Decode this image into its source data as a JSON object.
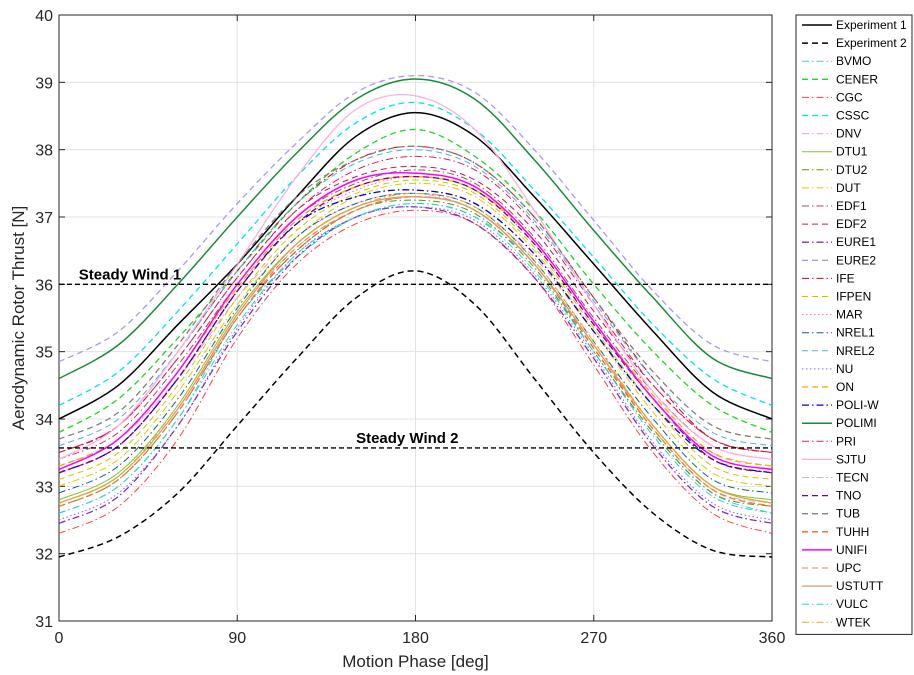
{
  "chart_data": {
    "type": "line",
    "xlabel": "Motion Phase [deg]",
    "ylabel": "Aerodynamic Rotor Thrust [N]",
    "xlim": [
      0,
      360
    ],
    "ylim": [
      31,
      40
    ],
    "xticks": [
      0,
      90,
      180,
      270,
      360
    ],
    "yticks": [
      31,
      32,
      33,
      34,
      35,
      36,
      37,
      38,
      39,
      40
    ],
    "grid": true,
    "legend_position": "outside-right",
    "x": [
      0,
      30,
      60,
      90,
      120,
      150,
      180,
      210,
      240,
      270,
      300,
      330,
      360
    ],
    "annotations": [
      {
        "text": "Steady Wind 1",
        "x": 10,
        "y": 36.0,
        "value": 36.0
      },
      {
        "text": "Steady Wind 2",
        "x": 150,
        "y": 33.57,
        "value": 33.57
      }
    ],
    "series": [
      {
        "name": "Experiment 1",
        "color": "#000000",
        "dash": "solid",
        "width": 1.5,
        "values": [
          34.0,
          34.5,
          35.4,
          36.3,
          37.3,
          38.2,
          38.55,
          38.2,
          37.3,
          36.3,
          35.3,
          34.4,
          34.0
        ]
      },
      {
        "name": "Experiment 2",
        "color": "#000000",
        "dash": "dashed",
        "width": 1.5,
        "values": [
          31.95,
          32.25,
          32.9,
          33.9,
          34.9,
          35.8,
          36.2,
          35.7,
          34.6,
          33.5,
          32.6,
          32.05,
          31.95
        ]
      },
      {
        "name": "BVMO",
        "color": "#4bc8d8",
        "dash": "dashdot",
        "width": 1,
        "values": [
          32.6,
          33.0,
          34.0,
          35.5,
          36.4,
          37.0,
          37.2,
          37.0,
          36.3,
          35.0,
          33.8,
          32.9,
          32.6
        ]
      },
      {
        "name": "CENER",
        "color": "#22d422",
        "dash": "dashed",
        "width": 1.3,
        "values": [
          33.8,
          34.3,
          35.2,
          36.2,
          37.2,
          37.95,
          38.3,
          37.9,
          37.1,
          36.0,
          35.0,
          34.2,
          33.8
        ]
      },
      {
        "name": "CGC",
        "color": "#ff4040",
        "dash": "dashdot",
        "width": 1,
        "values": [
          32.3,
          32.7,
          33.7,
          35.2,
          36.3,
          36.9,
          37.1,
          36.9,
          36.1,
          34.8,
          33.5,
          32.6,
          32.3
        ]
      },
      {
        "name": "CSSC",
        "color": "#00e5ee",
        "dash": "dashed",
        "width": 1.3,
        "values": [
          34.2,
          34.7,
          35.6,
          36.6,
          37.6,
          38.4,
          38.7,
          38.3,
          37.4,
          36.4,
          35.4,
          34.6,
          34.2
        ]
      },
      {
        "name": "DNV",
        "color": "#e8a0e8",
        "dash": "dashdot",
        "width": 1,
        "values": [
          33.3,
          33.7,
          34.6,
          35.8,
          36.7,
          37.2,
          37.35,
          37.1,
          36.4,
          35.3,
          34.2,
          33.5,
          33.3
        ]
      },
      {
        "name": "DTU1",
        "color": "#80c040",
        "dash": "solid",
        "width": 1,
        "values": [
          32.8,
          33.2,
          34.2,
          35.6,
          36.6,
          37.15,
          37.3,
          37.1,
          36.3,
          35.1,
          33.9,
          33.0,
          32.8
        ]
      },
      {
        "name": "DTU2",
        "color": "#609010",
        "dash": "dashdot",
        "width": 1,
        "values": [
          32.7,
          33.1,
          34.1,
          35.5,
          36.5,
          37.1,
          37.25,
          37.05,
          36.25,
          35.0,
          33.8,
          32.9,
          32.7
        ]
      },
      {
        "name": "DUT",
        "color": "#e0c800",
        "dash": "dashdot",
        "width": 1,
        "values": [
          33.0,
          33.4,
          34.4,
          35.7,
          36.7,
          37.3,
          37.5,
          37.3,
          36.5,
          35.3,
          34.1,
          33.2,
          33.0
        ]
      },
      {
        "name": "EDF1",
        "color": "#a05050",
        "dash": "dashdot",
        "width": 1,
        "values": [
          33.4,
          33.8,
          34.8,
          36.0,
          37.0,
          37.5,
          37.7,
          37.5,
          36.7,
          35.5,
          34.4,
          33.6,
          33.4
        ]
      },
      {
        "name": "EDF2",
        "color": "#c81850",
        "dash": "dashed",
        "width": 1,
        "values": [
          33.5,
          33.9,
          34.9,
          36.1,
          37.1,
          37.6,
          37.75,
          37.55,
          36.8,
          35.6,
          34.5,
          33.7,
          33.5
        ]
      },
      {
        "name": "EURE1",
        "color": "#7b2fc8",
        "dash": "dashdot",
        "width": 1.3,
        "values": [
          32.45,
          32.85,
          33.9,
          35.3,
          36.4,
          37.0,
          37.15,
          36.9,
          36.1,
          34.9,
          33.6,
          32.7,
          32.45
        ]
      },
      {
        "name": "EURE2",
        "color": "#a89af0",
        "dash": "dashed",
        "width": 1.3,
        "values": [
          34.85,
          35.3,
          36.2,
          37.2,
          38.1,
          38.85,
          39.1,
          38.85,
          38.0,
          36.95,
          35.9,
          35.1,
          34.85
        ]
      },
      {
        "name": "IFE",
        "color": "#e00000",
        "dash": "dashdot",
        "width": 1,
        "values": [
          33.5,
          33.9,
          35.0,
          36.2,
          37.2,
          37.85,
          38.05,
          37.8,
          37.0,
          35.8,
          34.6,
          33.7,
          33.5
        ]
      },
      {
        "name": "IFPEN",
        "color": "#c8c800",
        "dash": "dashed",
        "width": 1,
        "values": [
          33.1,
          33.5,
          34.5,
          35.8,
          36.8,
          37.35,
          37.55,
          37.35,
          36.55,
          35.35,
          34.2,
          33.3,
          33.1
        ]
      },
      {
        "name": "MAR",
        "color": "#ff69b4",
        "dash": "dotted",
        "width": 1,
        "values": [
          33.2,
          33.6,
          34.6,
          35.9,
          36.9,
          37.4,
          37.6,
          37.4,
          36.6,
          35.4,
          34.3,
          33.4,
          33.2
        ]
      },
      {
        "name": "NREL1",
        "color": "#10608a",
        "dash": "dashdot",
        "width": 1,
        "values": [
          32.9,
          33.3,
          34.3,
          35.65,
          36.7,
          37.2,
          37.35,
          37.15,
          36.35,
          35.15,
          34.0,
          33.1,
          32.9
        ]
      },
      {
        "name": "NREL2",
        "color": "#50b0e0",
        "dash": "dashed",
        "width": 1,
        "values": [
          33.6,
          34.0,
          35.0,
          36.2,
          37.2,
          37.8,
          38.0,
          37.75,
          36.95,
          35.75,
          34.6,
          33.8,
          33.6
        ]
      },
      {
        "name": "NU",
        "color": "#9060f0",
        "dash": "dotted",
        "width": 1,
        "values": [
          32.5,
          32.9,
          33.9,
          35.35,
          36.45,
          37.0,
          37.15,
          36.95,
          36.15,
          34.95,
          33.65,
          32.75,
          32.5
        ]
      },
      {
        "name": "ON",
        "color": "#ffa500",
        "dash": "dashed",
        "width": 1.3,
        "values": [
          33.3,
          33.7,
          34.7,
          35.95,
          36.95,
          37.45,
          37.6,
          37.4,
          36.65,
          35.45,
          34.35,
          33.5,
          33.3
        ]
      },
      {
        "name": "POLI-W",
        "color": "#0000d0",
        "dash": "dashdot",
        "width": 1.3,
        "values": [
          33.2,
          33.6,
          34.6,
          35.9,
          36.9,
          37.3,
          37.4,
          37.2,
          36.45,
          35.3,
          34.2,
          33.4,
          33.2
        ]
      },
      {
        "name": "POLIMI",
        "color": "#1a8a3a",
        "dash": "solid",
        "width": 1.5,
        "values": [
          34.6,
          35.1,
          36.0,
          37.0,
          37.95,
          38.75,
          39.05,
          38.75,
          37.85,
          36.8,
          35.8,
          34.9,
          34.6
        ]
      },
      {
        "name": "PRI",
        "color": "#e02060",
        "dash": "dashdot",
        "width": 1,
        "values": [
          33.5,
          33.9,
          34.9,
          36.1,
          37.1,
          37.7,
          37.9,
          37.7,
          36.9,
          35.7,
          34.5,
          33.7,
          33.5
        ]
      },
      {
        "name": "SJTU",
        "color": "#ffb0e0",
        "dash": "solid",
        "width": 1.3,
        "values": [
          33.4,
          33.9,
          35.0,
          36.3,
          37.6,
          38.6,
          38.8,
          38.3,
          37.1,
          35.7,
          34.4,
          33.6,
          33.4
        ]
      },
      {
        "name": "TECN",
        "color": "#c0c0c0",
        "dash": "dashdot",
        "width": 1,
        "values": [
          32.75,
          33.15,
          34.15,
          35.55,
          36.55,
          37.1,
          37.3,
          37.1,
          36.3,
          35.1,
          33.85,
          32.95,
          32.75
        ]
      },
      {
        "name": "TNO",
        "color": "#800080",
        "dash": "dashed",
        "width": 1.3,
        "values": [
          33.2,
          33.6,
          34.6,
          35.9,
          36.9,
          37.45,
          37.6,
          37.4,
          36.6,
          35.4,
          34.3,
          33.4,
          33.2
        ]
      },
      {
        "name": "TUB",
        "color": "#808080",
        "dash": "dashed",
        "width": 1.3,
        "values": [
          33.7,
          34.1,
          35.1,
          36.3,
          37.3,
          37.85,
          38.05,
          37.8,
          37.0,
          35.8,
          34.7,
          33.9,
          33.7
        ]
      },
      {
        "name": "TUHH",
        "color": "#ff6020",
        "dash": "dashed",
        "width": 1.3,
        "values": [
          32.7,
          33.1,
          34.1,
          35.5,
          36.5,
          37.1,
          37.3,
          37.1,
          36.3,
          35.05,
          33.85,
          32.95,
          32.7
        ]
      },
      {
        "name": "UNIFI",
        "color": "#ff00ff",
        "dash": "solid",
        "width": 1.5,
        "values": [
          33.25,
          33.7,
          34.7,
          36.0,
          37.0,
          37.55,
          37.65,
          37.45,
          36.65,
          35.45,
          34.3,
          33.45,
          33.25
        ]
      },
      {
        "name": "UPC",
        "color": "#f08050",
        "dash": "dashed",
        "width": 1,
        "values": [
          32.7,
          33.1,
          34.1,
          35.5,
          36.55,
          37.1,
          37.3,
          37.1,
          36.3,
          35.1,
          33.85,
          32.95,
          32.7
        ]
      },
      {
        "name": "USTUTT",
        "color": "#d0a070",
        "dash": "solid",
        "width": 1.3,
        "values": [
          32.75,
          33.15,
          34.15,
          35.55,
          36.6,
          37.15,
          37.3,
          37.1,
          36.3,
          35.1,
          33.9,
          33.0,
          32.75
        ]
      },
      {
        "name": "VULC",
        "color": "#20d8d0",
        "dash": "dashdot",
        "width": 1,
        "values": [
          32.6,
          33.0,
          34.0,
          35.4,
          36.45,
          37.0,
          37.2,
          37.0,
          36.2,
          35.0,
          33.75,
          32.85,
          32.6
        ]
      },
      {
        "name": "WTEK",
        "color": "#e8b000",
        "dash": "dashdot",
        "width": 1,
        "values": [
          32.75,
          33.15,
          34.2,
          35.6,
          36.6,
          37.15,
          37.35,
          37.15,
          36.35,
          35.15,
          33.9,
          33.0,
          32.75
        ]
      }
    ]
  }
}
